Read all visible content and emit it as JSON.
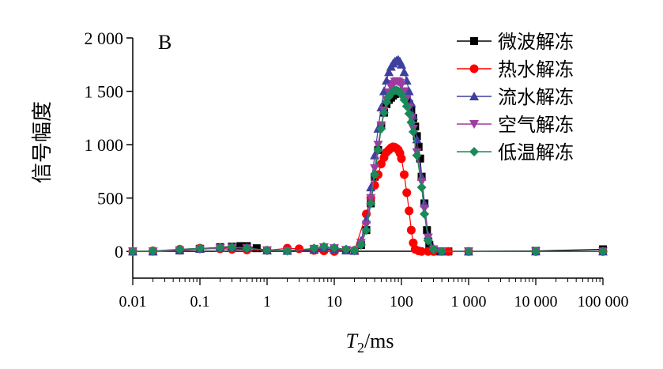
{
  "chart_data": {
    "type": "line",
    "panel_label": "B",
    "xlabel_main": "T",
    "xlabel_sub": "2",
    "xlabel_unit": "/ms",
    "ylabel": "信号幅度",
    "xscale": "log",
    "xlim": [
      0.01,
      100000
    ],
    "ylim": [
      -250,
      2000
    ],
    "yticks": [
      0,
      500,
      1000,
      1500,
      2000
    ],
    "ytick_labels": [
      "0",
      "500",
      "1 000",
      "1 500",
      "2 000"
    ],
    "xticks": [
      0.01,
      0.1,
      1,
      10,
      100,
      1000,
      10000,
      100000
    ],
    "xtick_labels": [
      "0.01",
      "0.1",
      "1",
      "10",
      "100",
      "1 000",
      "10 000",
      "100 000"
    ],
    "legend_position": "top-right",
    "series": [
      {
        "name": "微波解冻",
        "color": "#000000",
        "marker": "square",
        "x": [
          0.01,
          0.02,
          0.05,
          0.1,
          0.2,
          0.3,
          0.4,
          0.5,
          0.7,
          1,
          2,
          5,
          7,
          10,
          15,
          20,
          25,
          30,
          35,
          40,
          45,
          50,
          55,
          60,
          65,
          70,
          75,
          80,
          85,
          90,
          95,
          100,
          110,
          120,
          130,
          140,
          150,
          160,
          170,
          180,
          190,
          200,
          220,
          240,
          260,
          280,
          300,
          350,
          400,
          500,
          1000,
          10000,
          100000
        ],
        "y": [
          0,
          0,
          10,
          25,
          40,
          45,
          50,
          50,
          30,
          10,
          10,
          15,
          20,
          15,
          10,
          5,
          60,
          200,
          450,
          700,
          950,
          1180,
          1300,
          1380,
          1420,
          1440,
          1460,
          1475,
          1480,
          1490,
          1495,
          1490,
          1470,
          1430,
          1380,
          1320,
          1250,
          1170,
          1080,
          980,
          870,
          700,
          450,
          200,
          60,
          15,
          5,
          0,
          0,
          0,
          0,
          5,
          20
        ]
      },
      {
        "name": "热水解冻",
        "color": "#ff0000",
        "marker": "circle",
        "x": [
          0.01,
          0.02,
          0.05,
          0.1,
          0.2,
          0.3,
          0.5,
          1,
          2,
          3,
          5,
          7,
          10,
          20,
          30,
          35,
          40,
          45,
          50,
          55,
          60,
          65,
          70,
          75,
          80,
          85,
          90,
          95,
          100,
          110,
          120,
          130,
          140,
          150,
          160,
          180,
          200,
          250,
          300,
          500,
          1000,
          10000,
          100000
        ],
        "y": [
          0,
          5,
          20,
          30,
          25,
          20,
          15,
          10,
          30,
          25,
          10,
          5,
          0,
          10,
          350,
          500,
          620,
          720,
          820,
          880,
          930,
          950,
          970,
          980,
          975,
          965,
          950,
          920,
          870,
          720,
          550,
          380,
          200,
          80,
          20,
          5,
          0,
          0,
          0,
          0,
          0,
          0,
          0
        ]
      },
      {
        "name": "流水解冻",
        "color": "#3f3f9e",
        "marker": "triangle-up",
        "x": [
          0.01,
          0.02,
          0.05,
          0.1,
          0.2,
          0.3,
          0.5,
          1,
          2,
          5,
          7,
          10,
          15,
          20,
          25,
          30,
          35,
          40,
          45,
          50,
          55,
          60,
          65,
          70,
          75,
          80,
          85,
          90,
          95,
          100,
          110,
          120,
          130,
          140,
          150,
          170,
          200,
          220,
          250,
          300,
          400,
          1000,
          10000,
          100000
        ],
        "y": [
          0,
          0,
          15,
          25,
          35,
          40,
          35,
          10,
          5,
          20,
          30,
          20,
          10,
          5,
          100,
          300,
          600,
          900,
          1150,
          1350,
          1500,
          1600,
          1680,
          1730,
          1760,
          1780,
          1790,
          1795,
          1780,
          1750,
          1680,
          1600,
          1500,
          1390,
          1270,
          1050,
          700,
          450,
          150,
          30,
          0,
          0,
          0,
          0
        ]
      },
      {
        "name": "空气解冻",
        "color": "#a03ca0",
        "marker": "triangle-down",
        "x": [
          0.01,
          0.02,
          0.05,
          0.1,
          0.2,
          0.3,
          0.5,
          1,
          2,
          5,
          7,
          10,
          15,
          20,
          25,
          30,
          35,
          40,
          45,
          50,
          55,
          60,
          65,
          70,
          75,
          80,
          85,
          90,
          95,
          100,
          110,
          120,
          130,
          140,
          150,
          170,
          200,
          220,
          250,
          300,
          400,
          1000,
          10000,
          100000
        ],
        "y": [
          0,
          0,
          10,
          20,
          30,
          35,
          30,
          10,
          5,
          25,
          40,
          30,
          15,
          5,
          80,
          250,
          500,
          780,
          1000,
          1180,
          1320,
          1420,
          1490,
          1540,
          1570,
          1590,
          1595,
          1590,
          1580,
          1560,
          1500,
          1430,
          1350,
          1250,
          1150,
          930,
          650,
          400,
          130,
          20,
          0,
          0,
          0,
          0
        ]
      },
      {
        "name": "低温解冻",
        "color": "#1a8a5a",
        "marker": "diamond",
        "x": [
          0.01,
          0.02,
          0.05,
          0.1,
          0.2,
          0.3,
          0.5,
          1,
          2,
          5,
          7,
          10,
          15,
          20,
          25,
          30,
          35,
          40,
          45,
          50,
          55,
          60,
          65,
          70,
          75,
          80,
          85,
          90,
          95,
          100,
          110,
          120,
          130,
          140,
          150,
          170,
          200,
          220,
          250,
          300,
          400,
          1000,
          10000,
          100000
        ],
        "y": [
          0,
          5,
          20,
          30,
          35,
          40,
          30,
          10,
          5,
          30,
          45,
          35,
          20,
          10,
          60,
          200,
          450,
          720,
          950,
          1150,
          1300,
          1400,
          1450,
          1480,
          1500,
          1510,
          1510,
          1500,
          1490,
          1470,
          1420,
          1360,
          1290,
          1210,
          1120,
          900,
          600,
          350,
          100,
          20,
          0,
          0,
          0,
          0
        ]
      }
    ]
  }
}
